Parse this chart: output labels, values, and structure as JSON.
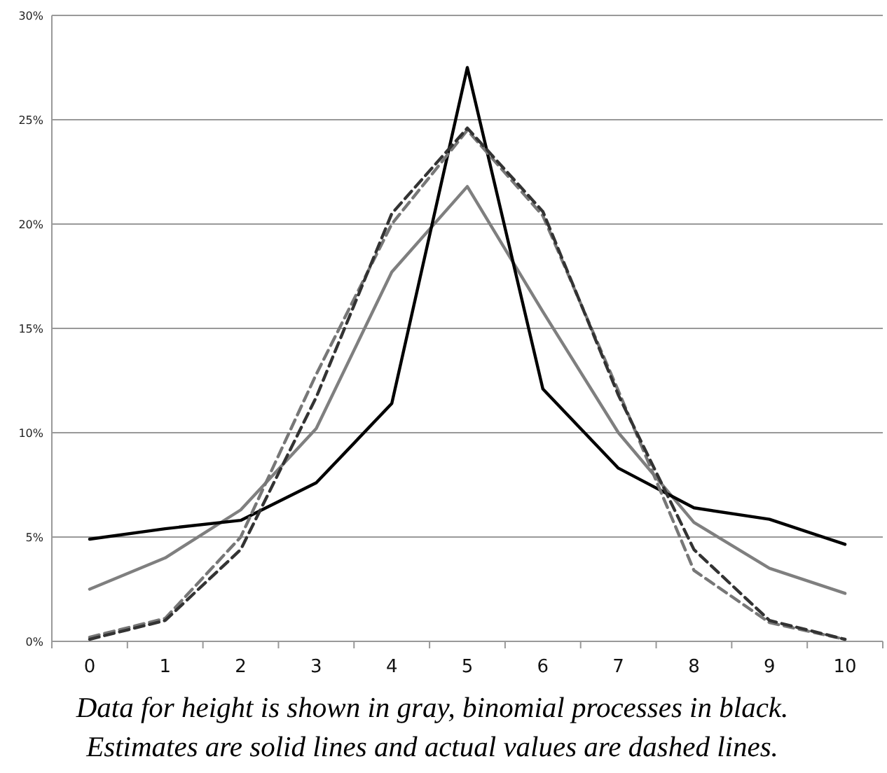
{
  "chart_data": {
    "type": "line",
    "categories": [
      "0",
      "1",
      "2",
      "3",
      "4",
      "5",
      "6",
      "7",
      "8",
      "9",
      "10"
    ],
    "series": [
      {
        "color": "#7f7f7f",
        "line_style": "solid",
        "values": [
          2.5,
          4.0,
          6.3,
          10.2,
          17.7,
          21.8,
          15.8,
          10.0,
          5.7,
          3.5,
          2.3
        ]
      },
      {
        "color": "#000000",
        "line_style": "solid",
        "values": [
          4.9,
          5.4,
          5.8,
          7.6,
          11.4,
          27.5,
          12.1,
          8.3,
          6.4,
          5.85,
          4.65
        ]
      },
      {
        "color": "#777777",
        "line_style": "dashed",
        "values": [
          0.2,
          1.1,
          5.0,
          12.8,
          20.0,
          24.5,
          20.4,
          12.0,
          3.4,
          0.9,
          0.1
        ]
      },
      {
        "color": "#333333",
        "line_style": "dashed",
        "values": [
          0.1,
          1.0,
          4.4,
          11.7,
          20.5,
          24.6,
          20.6,
          11.8,
          4.4,
          1.0,
          0.1
        ]
      }
    ],
    "ylim": [
      0,
      30
    ],
    "yticks": [
      {
        "value": 0,
        "label": "0%"
      },
      {
        "value": 5,
        "label": "5%"
      },
      {
        "value": 10,
        "label": "10%"
      },
      {
        "value": 15,
        "label": "15%"
      },
      {
        "value": 20,
        "label": "20%"
      },
      {
        "value": 25,
        "label": "25%"
      },
      {
        "value": 30,
        "label": "30%"
      }
    ],
    "grid": "y",
    "marker": "none",
    "annotations": [
      "Data for height is shown in gray, binomial processes in black.",
      "Estimates are solid lines and actual values are dashed lines."
    ]
  }
}
